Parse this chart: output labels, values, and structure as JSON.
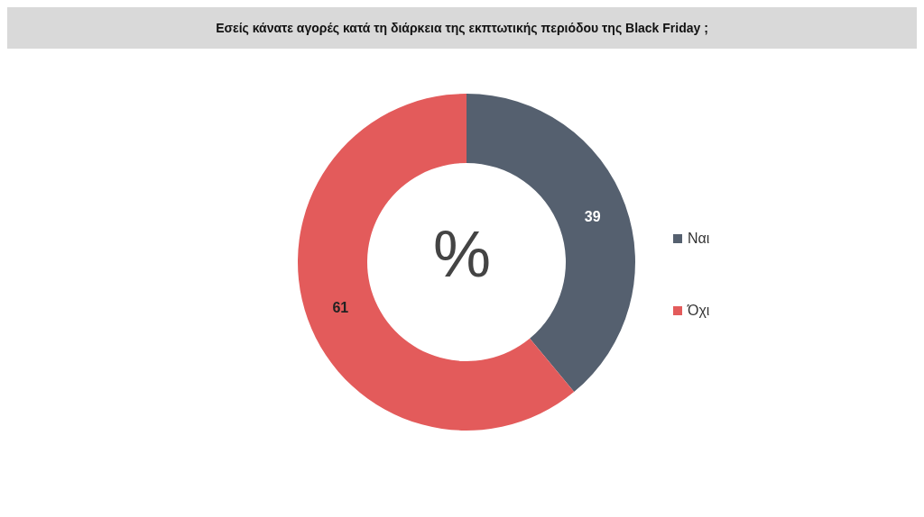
{
  "chart_data": {
    "type": "donut",
    "title": "Εσείς κάνατε αγορές κατά τη διάρκεια της εκπτωτικής περιόδου της Black Friday ;",
    "categories": [
      "Ναι",
      "Όχι"
    ],
    "values": [
      39,
      61
    ],
    "colors": [
      "#55606f",
      "#e35b5b"
    ],
    "data_labels": true,
    "legend": "right",
    "annotations": [
      "%"
    ]
  }
}
